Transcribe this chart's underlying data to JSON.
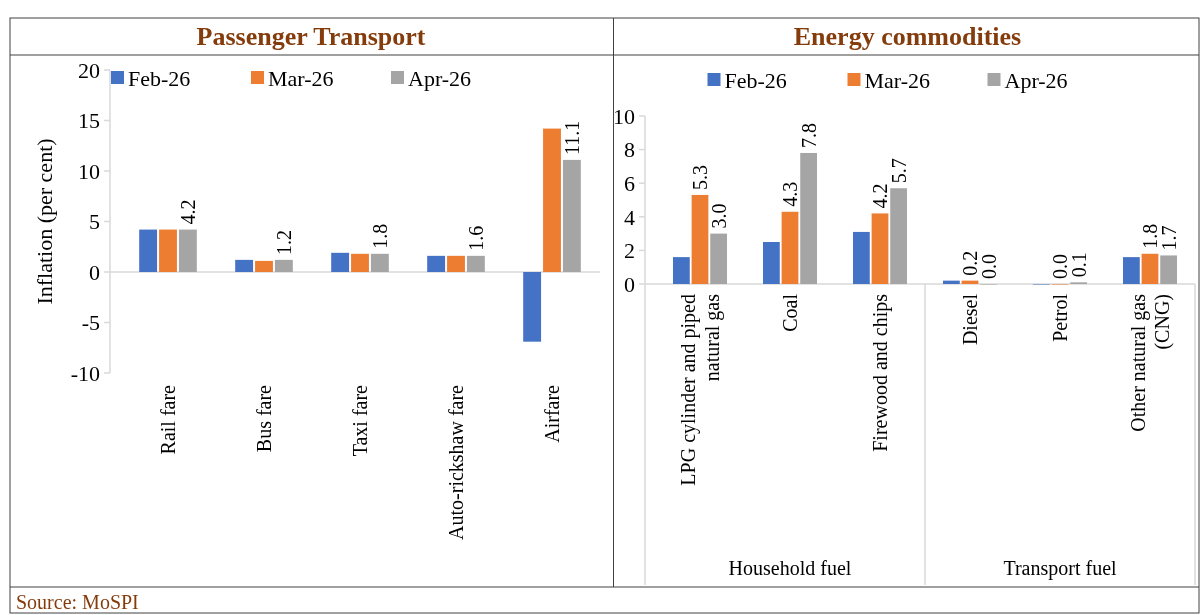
{
  "chart_data": [
    {
      "type": "bar",
      "title": "Passenger Transport",
      "ylabel": "Inflation (per cent)",
      "categories": [
        "Rail fare",
        "Bus fare",
        "Taxi fare",
        "Auto-rickshaw fare",
        "Airfare"
      ],
      "series": [
        {
          "name": "Feb-26",
          "color": "#4472c4",
          "values": [
            4.2,
            1.2,
            1.9,
            1.6,
            -6.9
          ]
        },
        {
          "name": "Mar-26",
          "color": "#ed7d31",
          "values": [
            4.2,
            1.1,
            1.8,
            1.6,
            14.2
          ]
        },
        {
          "name": "Apr-26",
          "color": "#a5a5a5",
          "values": [
            4.2,
            1.2,
            1.8,
            1.6,
            11.1
          ],
          "value_labels": [
            "4.2",
            "1.2",
            "1.8",
            "1.6",
            "11.1"
          ]
        }
      ],
      "ylim": [
        -10,
        20
      ],
      "yticks": [
        -10,
        -5,
        0,
        5,
        10,
        15,
        20
      ],
      "legend": "top",
      "annotations": [
        "Source: MoSPI"
      ]
    },
    {
      "type": "bar",
      "title": "Energy commodities",
      "categories": [
        "LPG cylinder and piped natural gas",
        "Coal",
        "Firewood and chips",
        "Diesel",
        "Petrol",
        "Other natural gas (CNG)"
      ],
      "series": [
        {
          "name": "Feb-26",
          "color": "#4472c4",
          "values": [
            1.6,
            2.5,
            3.1,
            0.2,
            0.0,
            1.6
          ]
        },
        {
          "name": "Mar-26",
          "color": "#ed7d31",
          "values": [
            5.3,
            4.3,
            4.2,
            0.2,
            0.0,
            1.8
          ],
          "value_labels": [
            "5.3",
            "4.3",
            "4.2",
            "0.2",
            "0.0",
            "1.8"
          ]
        },
        {
          "name": "Apr-26",
          "color": "#a5a5a5",
          "values": [
            3.0,
            7.8,
            5.7,
            0.0,
            0.1,
            1.7
          ],
          "value_labels": [
            "3.0",
            "7.8",
            "5.7",
            "0.0",
            "0.1",
            "1.7"
          ]
        }
      ],
      "ylim": [
        0,
        10
      ],
      "yticks": [
        0,
        2,
        4,
        6,
        8,
        10
      ],
      "legend": "top",
      "annotations": [
        "Household fuel",
        "Transport fuel"
      ]
    }
  ]
}
